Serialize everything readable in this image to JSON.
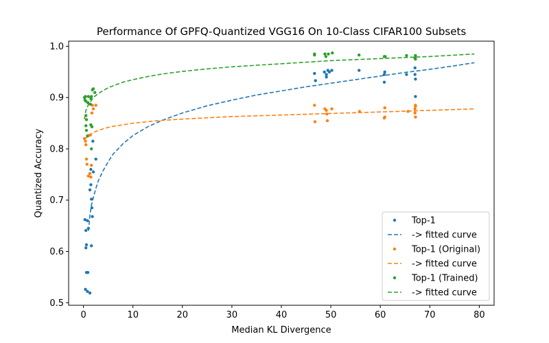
{
  "chart_data": {
    "type": "scatter",
    "title": "Performance Of GPFQ-Quantized VGG16 On 10-Class CIFAR100 Subsets",
    "xlabel": "Median KL Divergence",
    "ylabel": "Quantized Accuracy",
    "xlim": [
      -3,
      83
    ],
    "ylim": [
      0.495,
      1.01
    ],
    "xticks": [
      0,
      10,
      20,
      30,
      40,
      50,
      60,
      70,
      80
    ],
    "yticks": [
      0.5,
      0.6,
      0.7,
      0.8,
      0.9,
      1.0
    ],
    "xtick_labels": [
      "0",
      "10",
      "20",
      "30",
      "40",
      "50",
      "60",
      "70",
      "80"
    ],
    "ytick_labels": [
      "0.5",
      "0.6",
      "0.7",
      "0.8",
      "0.9",
      "1.0"
    ],
    "grid": false,
    "legend_position": "lower-right",
    "legend": [
      "Top-1",
      "-> fitted curve",
      "Top-1 (Original)",
      "-> fitted curve",
      "Top-1 (Trained)",
      "-> fitted curve"
    ],
    "series": [
      {
        "name": "Top-1",
        "color": "#1f77b4",
        "points": [
          [
            0.3,
            0.662
          ],
          [
            0.5,
            0.607
          ],
          [
            0.6,
            0.613
          ],
          [
            0.5,
            0.641
          ],
          [
            0.6,
            0.559
          ],
          [
            0.9,
            0.559
          ],
          [
            0.4,
            0.526
          ],
          [
            0.8,
            0.522
          ],
          [
            1.3,
            0.519
          ],
          [
            1.0,
            0.645
          ],
          [
            0.8,
            0.66
          ],
          [
            1.6,
            0.611
          ],
          [
            1.3,
            0.72
          ],
          [
            1.5,
            0.73
          ],
          [
            1.6,
            0.702
          ],
          [
            1.7,
            0.685
          ],
          [
            1.8,
            0.668
          ],
          [
            1.5,
            0.76
          ],
          [
            2.0,
            0.755
          ],
          [
            2.5,
            0.78
          ],
          [
            1.9,
            0.815
          ],
          [
            46.7,
            0.947
          ],
          [
            46.9,
            0.933
          ],
          [
            48.7,
            0.95
          ],
          [
            49.1,
            0.945
          ],
          [
            49.4,
            0.953
          ],
          [
            49.7,
            0.95
          ],
          [
            50.2,
            0.953
          ],
          [
            49.1,
            0.94
          ],
          [
            55.7,
            0.953
          ],
          [
            60.8,
            0.945
          ],
          [
            60.8,
            0.93
          ],
          [
            60.9,
            0.95
          ],
          [
            65.3,
            0.945
          ],
          [
            67.0,
            0.958
          ],
          [
            67.0,
            0.945
          ],
          [
            67.1,
            0.936
          ],
          [
            67.1,
            0.902
          ]
        ]
      },
      {
        "name": "-> fitted curve",
        "color": "#1f77b4",
        "fit": [
          [
            1.0,
            0.64
          ],
          [
            1.3,
            0.67
          ],
          [
            1.6,
            0.69
          ],
          [
            2,
            0.705
          ],
          [
            2.5,
            0.723
          ],
          [
            3,
            0.738
          ],
          [
            4,
            0.758
          ],
          [
            5,
            0.775
          ],
          [
            6,
            0.79
          ],
          [
            8,
            0.81
          ],
          [
            10,
            0.826
          ],
          [
            13,
            0.843
          ],
          [
            16,
            0.856
          ],
          [
            20,
            0.87
          ],
          [
            25,
            0.884
          ],
          [
            30,
            0.895
          ],
          [
            35,
            0.905
          ],
          [
            40,
            0.913
          ],
          [
            45,
            0.921
          ],
          [
            50,
            0.928
          ],
          [
            55,
            0.935
          ],
          [
            60,
            0.942
          ],
          [
            65,
            0.949
          ],
          [
            70,
            0.955
          ],
          [
            75,
            0.962
          ],
          [
            79,
            0.968
          ]
        ]
      },
      {
        "name": "Top-1 (Original)",
        "color": "#ff7f0e",
        "points": [
          [
            0.2,
            0.82
          ],
          [
            0.4,
            0.815
          ],
          [
            0.5,
            0.808
          ],
          [
            0.6,
            0.78
          ],
          [
            0.7,
            0.77
          ],
          [
            1.0,
            0.747
          ],
          [
            1.3,
            0.752
          ],
          [
            1.5,
            0.745
          ],
          [
            1.6,
            0.768
          ],
          [
            1.0,
            0.826
          ],
          [
            1.4,
            0.827
          ],
          [
            1.7,
            0.87
          ],
          [
            2.0,
            0.878
          ],
          [
            2.5,
            0.885
          ],
          [
            1.8,
            0.885
          ],
          [
            46.7,
            0.885
          ],
          [
            46.8,
            0.853
          ],
          [
            48.8,
            0.878
          ],
          [
            49.1,
            0.875
          ],
          [
            49.2,
            0.868
          ],
          [
            49.3,
            0.855
          ],
          [
            50.2,
            0.878
          ],
          [
            55.8,
            0.873
          ],
          [
            60.9,
            0.88
          ],
          [
            60.9,
            0.862
          ],
          [
            60.8,
            0.86
          ],
          [
            65.6,
            0.873
          ],
          [
            67.1,
            0.885
          ],
          [
            67.1,
            0.883
          ],
          [
            67.0,
            0.878
          ],
          [
            67.0,
            0.87
          ],
          [
            67.1,
            0.862
          ]
        ]
      },
      {
        "name": "-> fitted curve",
        "color": "#ff7f0e",
        "fit": [
          [
            0.2,
            0.818
          ],
          [
            0.6,
            0.822
          ],
          [
            1,
            0.826
          ],
          [
            2,
            0.832
          ],
          [
            3,
            0.836
          ],
          [
            4,
            0.839
          ],
          [
            5,
            0.842
          ],
          [
            6,
            0.844
          ],
          [
            8,
            0.847
          ],
          [
            10,
            0.85
          ],
          [
            15,
            0.855
          ],
          [
            20,
            0.858
          ],
          [
            30,
            0.863
          ],
          [
            40,
            0.866
          ],
          [
            50,
            0.869
          ],
          [
            60,
            0.872
          ],
          [
            70,
            0.875
          ],
          [
            79,
            0.878
          ]
        ]
      },
      {
        "name": "Top-1 (Trained)",
        "color": "#2ca02c",
        "points": [
          [
            0.2,
            0.9
          ],
          [
            0.3,
            0.895
          ],
          [
            0.4,
            0.902
          ],
          [
            0.5,
            0.893
          ],
          [
            0.5,
            0.865
          ],
          [
            0.6,
            0.857
          ],
          [
            0.5,
            0.845
          ],
          [
            0.6,
            0.836
          ],
          [
            0.8,
            0.825
          ],
          [
            0.9,
            0.89
          ],
          [
            1.0,
            0.902
          ],
          [
            1.4,
            0.887
          ],
          [
            1.5,
            0.898
          ],
          [
            1.6,
            0.902
          ],
          [
            1.8,
            0.915
          ],
          [
            2.0,
            0.917
          ],
          [
            1.5,
            0.847
          ],
          [
            1.7,
            0.843
          ],
          [
            1.6,
            0.8
          ],
          [
            2.3,
            0.91
          ],
          [
            46.7,
            0.985
          ],
          [
            46.7,
            0.983
          ],
          [
            48.8,
            0.985
          ],
          [
            49.0,
            0.98
          ],
          [
            49.5,
            0.985
          ],
          [
            50.3,
            0.987
          ],
          [
            55.7,
            0.983
          ],
          [
            60.8,
            0.98
          ],
          [
            61.0,
            0.98
          ],
          [
            65.3,
            0.982
          ],
          [
            67.1,
            0.982
          ],
          [
            67.0,
            0.977
          ],
          [
            67.1,
            0.975
          ]
        ]
      },
      {
        "name": "-> fitted curve",
        "color": "#2ca02c",
        "fit": [
          [
            0.2,
            0.858
          ],
          [
            0.5,
            0.875
          ],
          [
            1,
            0.886
          ],
          [
            2,
            0.9
          ],
          [
            3,
            0.908
          ],
          [
            4,
            0.914
          ],
          [
            5,
            0.919
          ],
          [
            6,
            0.923
          ],
          [
            8,
            0.93
          ],
          [
            10,
            0.935
          ],
          [
            13,
            0.941
          ],
          [
            16,
            0.946
          ],
          [
            20,
            0.951
          ],
          [
            25,
            0.956
          ],
          [
            30,
            0.96
          ],
          [
            35,
            0.963
          ],
          [
            40,
            0.966
          ],
          [
            50,
            0.972
          ],
          [
            60,
            0.976
          ],
          [
            70,
            0.98
          ],
          [
            79,
            0.985
          ]
        ]
      }
    ]
  }
}
